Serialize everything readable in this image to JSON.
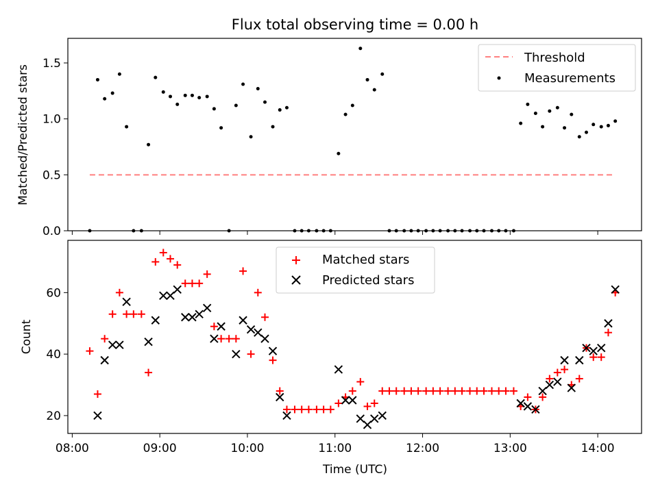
{
  "chart_data": [
    {
      "type": "scatter",
      "title": "Flux total observing time = 0.00 h",
      "xlabel": "",
      "ylabel": "Matched/Predicted stars",
      "xlim": [
        7.95,
        14.5
      ],
      "ylim": [
        0.0,
        1.72
      ],
      "yticks": [
        0.0,
        0.5,
        1.0,
        1.5
      ],
      "ytick_labels": [
        "0.0",
        "0.5",
        "1.0",
        "1.5"
      ],
      "xticks": [
        8,
        9,
        10,
        11,
        12,
        13,
        14
      ],
      "legend": [
        "Threshold",
        "Measurements"
      ],
      "legend_position": "top-right",
      "threshold": {
        "name": "Threshold",
        "x": [
          8.2,
          14.17
        ],
        "y": 0.5,
        "color": "#ff7f7f"
      },
      "series": [
        {
          "name": "Measurements",
          "color": "#000000",
          "x": [
            8.2,
            8.29,
            8.37,
            8.46,
            8.54,
            8.62,
            8.7,
            8.79,
            8.87,
            8.95,
            9.04,
            9.12,
            9.2,
            9.29,
            9.37,
            9.45,
            9.54,
            9.62,
            9.7,
            9.79,
            9.87,
            9.95,
            10.04,
            10.12,
            10.2,
            10.29,
            10.37,
            10.45,
            10.54,
            10.62,
            10.7,
            10.79,
            10.87,
            10.95,
            11.04,
            11.12,
            11.2,
            11.29,
            11.37,
            11.45,
            11.54,
            11.62,
            11.7,
            11.79,
            11.87,
            11.95,
            12.04,
            12.12,
            12.2,
            12.29,
            12.37,
            12.45,
            12.54,
            12.62,
            12.7,
            12.79,
            12.87,
            12.95,
            13.04,
            13.12,
            13.2,
            13.29,
            13.37,
            13.45,
            13.54,
            13.62,
            13.7,
            13.79,
            13.87,
            13.95,
            14.04,
            14.12,
            14.2
          ],
          "y": [
            0.0,
            1.35,
            1.18,
            1.23,
            1.4,
            0.93,
            0.0,
            0.0,
            0.77,
            1.37,
            1.24,
            1.2,
            1.13,
            1.21,
            1.21,
            1.19,
            1.2,
            1.09,
            0.92,
            0.0,
            1.12,
            1.31,
            0.84,
            1.27,
            1.15,
            0.93,
            1.08,
            1.1,
            0.0,
            0.0,
            0.0,
            0.0,
            0.0,
            0.0,
            0.69,
            1.04,
            1.12,
            1.63,
            1.35,
            1.26,
            1.4,
            0.0,
            0.0,
            0.0,
            0.0,
            0.0,
            0.0,
            0.0,
            0.0,
            0.0,
            0.0,
            0.0,
            0.0,
            0.0,
            0.0,
            0.0,
            0.0,
            0.0,
            0.0,
            0.96,
            1.13,
            1.05,
            0.93,
            1.07,
            1.1,
            0.92,
            1.04,
            0.84,
            0.88,
            0.95,
            0.93,
            0.94,
            0.98
          ]
        }
      ]
    },
    {
      "type": "scatter",
      "title": "",
      "xlabel": "Time (UTC)",
      "ylabel": "Count",
      "xlim": [
        7.95,
        14.5
      ],
      "ylim": [
        14.2,
        77
      ],
      "yticks": [
        20,
        40,
        60
      ],
      "ytick_labels": [
        "20",
        "40",
        "60"
      ],
      "xticks": [
        8,
        9,
        10,
        11,
        12,
        13,
        14
      ],
      "xtick_labels": [
        "08:00",
        "09:00",
        "10:00",
        "11:00",
        "12:00",
        "13:00",
        "14:00"
      ],
      "legend": [
        "Matched stars",
        "Predicted stars"
      ],
      "legend_position": "top-center",
      "series": [
        {
          "name": "Matched stars",
          "color": "#ff0000",
          "marker": "+",
          "x": [
            8.2,
            8.29,
            8.37,
            8.46,
            8.54,
            8.62,
            8.7,
            8.79,
            8.87,
            8.95,
            9.04,
            9.12,
            9.2,
            9.29,
            9.37,
            9.45,
            9.54,
            9.62,
            9.7,
            9.79,
            9.87,
            9.95,
            10.04,
            10.12,
            10.2,
            10.29,
            10.37,
            10.45,
            10.54,
            10.62,
            10.7,
            10.79,
            10.87,
            10.95,
            11.04,
            11.12,
            11.2,
            11.29,
            11.37,
            11.45,
            11.54,
            11.62,
            11.7,
            11.79,
            11.87,
            11.95,
            12.04,
            12.12,
            12.2,
            12.29,
            12.37,
            12.45,
            12.54,
            12.62,
            12.7,
            12.79,
            12.87,
            12.95,
            13.04,
            13.12,
            13.2,
            13.29,
            13.37,
            13.45,
            13.54,
            13.62,
            13.7,
            13.79,
            13.87,
            13.95,
            14.04,
            14.12,
            14.2
          ],
          "y": [
            41,
            27,
            45,
            53,
            60,
            53,
            53,
            53,
            34,
            70,
            73,
            71,
            69,
            63,
            63,
            63,
            66,
            49,
            45,
            45,
            45,
            67,
            40,
            60,
            52,
            38,
            28,
            22,
            22,
            22,
            22,
            22,
            22,
            22,
            24,
            26,
            28,
            31,
            23,
            24,
            28,
            28,
            28,
            28,
            28,
            28,
            28,
            28,
            28,
            28,
            28,
            28,
            28,
            28,
            28,
            28,
            28,
            28,
            28,
            23,
            26,
            22,
            26,
            32,
            34,
            35,
            30,
            32,
            42,
            39,
            39,
            47,
            60
          ]
        },
        {
          "name": "Predicted stars",
          "color": "#000000",
          "marker": "x",
          "x": [
            8.29,
            8.37,
            8.46,
            8.54,
            8.62,
            8.87,
            8.95,
            9.04,
            9.12,
            9.2,
            9.29,
            9.37,
            9.45,
            9.54,
            9.62,
            9.7,
            9.87,
            9.95,
            10.04,
            10.12,
            10.2,
            10.29,
            10.37,
            10.45,
            11.04,
            11.12,
            11.2,
            11.29,
            11.37,
            11.45,
            11.54,
            13.12,
            13.2,
            13.29,
            13.37,
            13.45,
            13.54,
            13.62,
            13.7,
            13.79,
            13.87,
            13.95,
            14.04,
            14.12,
            14.2
          ],
          "y": [
            20,
            38,
            43,
            43,
            57,
            44,
            51,
            59,
            59,
            61,
            52,
            52,
            53,
            55,
            45,
            49,
            40,
            51,
            48,
            47,
            45,
            41,
            26,
            20,
            35,
            25,
            25,
            19,
            17,
            19,
            20,
            24,
            23,
            22,
            28,
            30,
            31,
            38,
            29,
            38,
            42,
            41,
            42,
            50,
            61
          ]
        }
      ]
    }
  ]
}
